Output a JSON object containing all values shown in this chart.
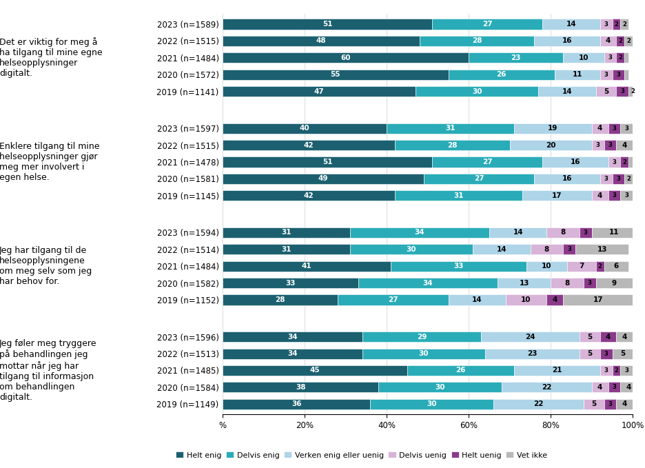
{
  "questions": [
    "Det er viktig for meg å\nha tilgang til mine egne\nhelseopplysninger\ndigitalt.",
    "Enklere tilgang til mine\nhelseopplysninger gjør\nmeg mer involvert i\negen helse.",
    "Jeg har tilgang til de\nhelseopplysningene\nom meg selv som jeg\nhar behov for.",
    "Jeg føler meg tryggere\npå behandlingen jeg\nmottar når jeg har\ntilgang til informasjon\nom behandlingen\ndigitalt."
  ],
  "series": [
    {
      "rows": [
        {
          "label": "2023 (n=1589)",
          "values": [
            51,
            27,
            14,
            3,
            2,
            2
          ]
        },
        {
          "label": "2022 (n=1515)",
          "values": [
            48,
            28,
            16,
            4,
            2,
            2
          ]
        },
        {
          "label": "2021 (n=1484)",
          "values": [
            60,
            23,
            10,
            3,
            2,
            1
          ]
        },
        {
          "label": "2020 (n=1572)",
          "values": [
            55,
            26,
            11,
            3,
            3,
            1
          ]
        },
        {
          "label": "2019 (n=1141)",
          "values": [
            47,
            30,
            14,
            5,
            3,
            2
          ]
        }
      ]
    },
    {
      "rows": [
        {
          "label": "2023 (n=1597)",
          "values": [
            40,
            31,
            19,
            4,
            3,
            3
          ]
        },
        {
          "label": "2022 (n=1515)",
          "values": [
            42,
            28,
            20,
            3,
            3,
            4
          ]
        },
        {
          "label": "2021 (n=1478)",
          "values": [
            51,
            27,
            16,
            3,
            2,
            1
          ]
        },
        {
          "label": "2020 (n=1581)",
          "values": [
            49,
            27,
            16,
            3,
            3,
            2
          ]
        },
        {
          "label": "2019 (n=1145)",
          "values": [
            42,
            31,
            17,
            4,
            3,
            3
          ]
        }
      ]
    },
    {
      "rows": [
        {
          "label": "2023 (n=1594)",
          "values": [
            31,
            34,
            14,
            8,
            3,
            11
          ]
        },
        {
          "label": "2022 (n=1514)",
          "values": [
            31,
            30,
            14,
            8,
            3,
            13
          ]
        },
        {
          "label": "2021 (n=1484)",
          "values": [
            41,
            33,
            10,
            7,
            2,
            6
          ]
        },
        {
          "label": "2020 (n=1582)",
          "values": [
            33,
            34,
            13,
            8,
            3,
            9
          ]
        },
        {
          "label": "2019 (n=1152)",
          "values": [
            28,
            27,
            14,
            10,
            4,
            17
          ]
        }
      ]
    },
    {
      "rows": [
        {
          "label": "2023 (n=1596)",
          "values": [
            34,
            29,
            24,
            5,
            4,
            4
          ]
        },
        {
          "label": "2022 (n=1513)",
          "values": [
            34,
            30,
            23,
            5,
            3,
            5
          ]
        },
        {
          "label": "2021 (n=1485)",
          "values": [
            45,
            26,
            21,
            3,
            2,
            3
          ]
        },
        {
          "label": "2020 (n=1584)",
          "values": [
            38,
            30,
            22,
            4,
            3,
            4
          ]
        },
        {
          "label": "2019 (n=1149)",
          "values": [
            36,
            30,
            22,
            5,
            3,
            4
          ]
        }
      ]
    }
  ],
  "colors": [
    "#1c6070",
    "#2aacb8",
    "#aed4e8",
    "#d8b4d8",
    "#8b3a8b",
    "#b8b8b8"
  ],
  "legend_labels": [
    "Helt enig",
    "Delvis enig",
    "Verken enig eller uenig",
    "Delvis uenig",
    "Helt uenig",
    "Vet ikke"
  ],
  "bar_height": 0.62,
  "background_color": "#ffffff",
  "label_fontsize": 7.5,
  "tick_fontsize": 8.5,
  "question_fontsize": 9.0
}
